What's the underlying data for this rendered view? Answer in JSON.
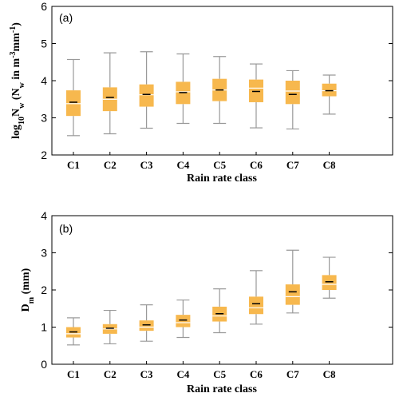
{
  "chart_data": [
    {
      "type": "box",
      "panel_label": "(a)",
      "categories": [
        "C1",
        "C2",
        "C3",
        "C4",
        "C5",
        "C6",
        "C7",
        "C8"
      ],
      "xlabel": "Rain rate class",
      "ylabel": "log10Nw (Nw in m-3mm-1)",
      "ylim": [
        2,
        6
      ],
      "yticks": [
        2,
        3,
        4,
        5,
        6
      ],
      "ytick_labels": [
        "2",
        "3",
        "4",
        "5",
        "6"
      ],
      "box_color": "#f7b84e",
      "whisker_color": "#999999",
      "boxes": [
        {
          "min": 2.52,
          "q1": 3.05,
          "median": 3.38,
          "mean": 3.42,
          "q3": 3.74,
          "max": 4.57
        },
        {
          "min": 2.57,
          "q1": 3.18,
          "median": 3.5,
          "mean": 3.55,
          "q3": 3.82,
          "max": 4.75
        },
        {
          "min": 2.72,
          "q1": 3.3,
          "median": 3.62,
          "mean": 3.63,
          "q3": 3.9,
          "max": 4.78
        },
        {
          "min": 2.85,
          "q1": 3.37,
          "median": 3.7,
          "mean": 3.68,
          "q3": 3.97,
          "max": 4.72
        },
        {
          "min": 2.85,
          "q1": 3.45,
          "median": 3.75,
          "mean": 3.75,
          "q3": 4.05,
          "max": 4.65
        },
        {
          "min": 2.73,
          "q1": 3.42,
          "median": 3.8,
          "mean": 3.71,
          "q3": 4.03,
          "max": 4.45
        },
        {
          "min": 2.7,
          "q1": 3.37,
          "median": 3.72,
          "mean": 3.63,
          "q3": 4.0,
          "max": 4.27
        },
        {
          "min": 3.1,
          "q1": 3.58,
          "median": 3.73,
          "mean": 3.73,
          "q3": 3.92,
          "max": 4.15
        }
      ]
    },
    {
      "type": "box",
      "panel_label": "(b)",
      "categories": [
        "C1",
        "C2",
        "C3",
        "C4",
        "C5",
        "C6",
        "C7",
        "C8"
      ],
      "xlabel": "Rain rate class",
      "ylabel": "Dm (mm)",
      "ylim": [
        0,
        4
      ],
      "yticks": [
        0,
        1,
        2,
        3,
        4
      ],
      "ytick_labels": [
        "0",
        "1",
        "2",
        "3",
        "4"
      ],
      "box_color": "#f7b84e",
      "whisker_color": "#999999",
      "boxes": [
        {
          "min": 0.52,
          "q1": 0.72,
          "median": 0.82,
          "mean": 0.87,
          "q3": 1.0,
          "max": 1.25
        },
        {
          "min": 0.55,
          "q1": 0.82,
          "median": 0.95,
          "mean": 0.97,
          "q3": 1.08,
          "max": 1.45
        },
        {
          "min": 0.62,
          "q1": 0.9,
          "median": 1.0,
          "mean": 1.06,
          "q3": 1.18,
          "max": 1.6
        },
        {
          "min": 0.72,
          "q1": 1.0,
          "median": 1.12,
          "mean": 1.19,
          "q3": 1.33,
          "max": 1.73
        },
        {
          "min": 0.85,
          "q1": 1.15,
          "median": 1.3,
          "mean": 1.36,
          "q3": 1.55,
          "max": 2.03
        },
        {
          "min": 1.08,
          "q1": 1.35,
          "median": 1.52,
          "mean": 1.63,
          "q3": 1.82,
          "max": 2.52
        },
        {
          "min": 1.38,
          "q1": 1.6,
          "median": 1.82,
          "mean": 1.95,
          "q3": 2.15,
          "max": 3.07
        },
        {
          "min": 1.78,
          "q1": 2.0,
          "median": 2.15,
          "mean": 2.22,
          "q3": 2.4,
          "max": 2.88
        }
      ]
    }
  ]
}
